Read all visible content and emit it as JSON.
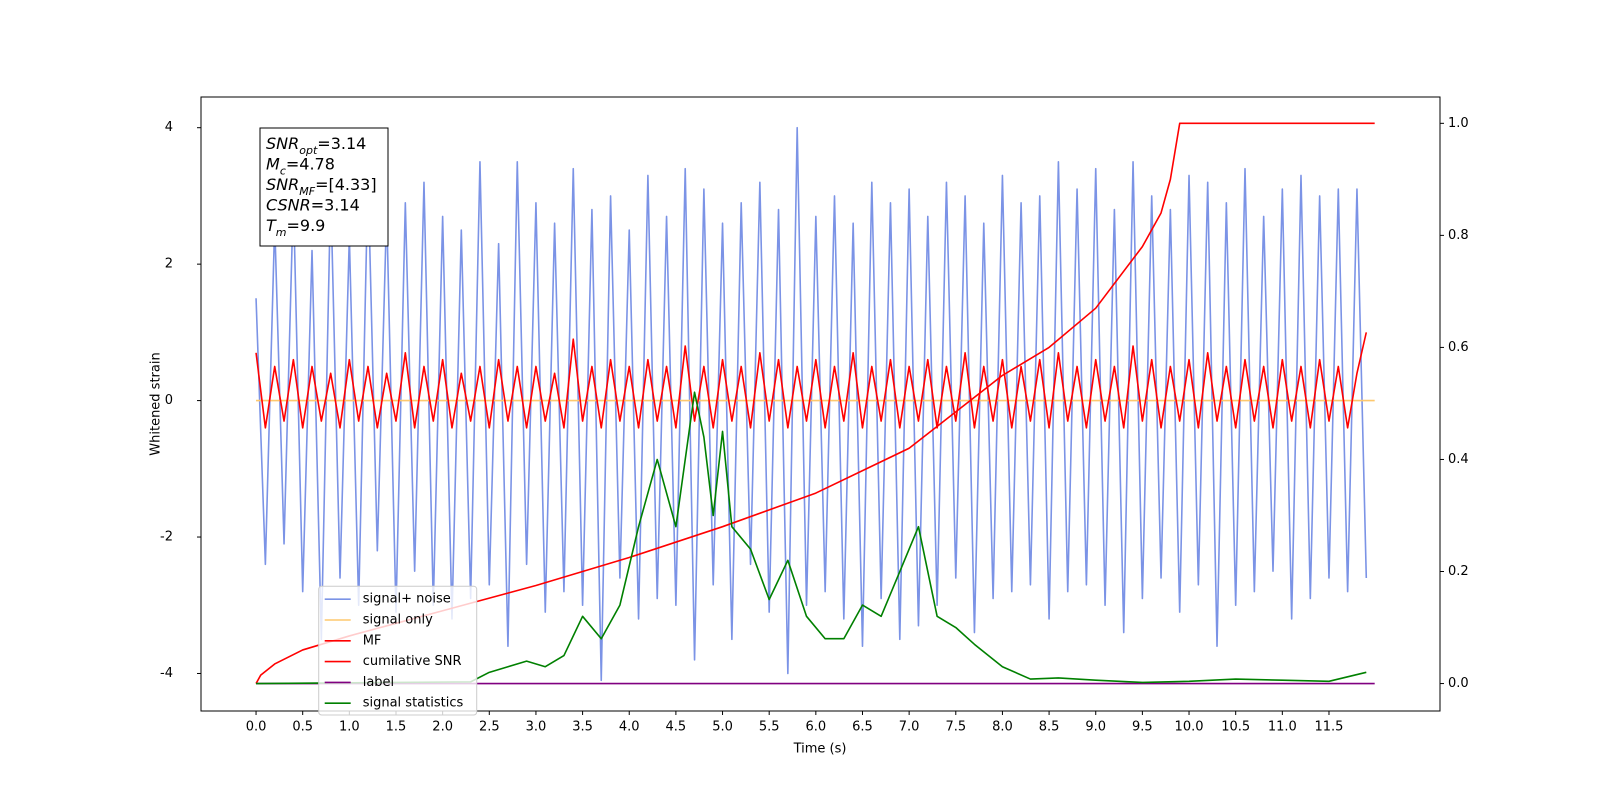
{
  "chart_data": {
    "type": "line",
    "xlabel": "Time (s)",
    "ylabel": "Whitened strain",
    "xlim": [
      -0.59,
      12.69
    ],
    "ylim": [
      -4.55,
      4.45
    ],
    "y2lim": [
      -0.049,
      1.047
    ],
    "xticks": [
      {
        "value": 0,
        "label": "0.0"
      },
      0.5,
      {
        "value": 1,
        "label": "1.0"
      },
      1.5,
      {
        "value": 2,
        "label": "2.0"
      },
      2.5,
      {
        "value": 3,
        "label": "3.0"
      },
      3.5,
      {
        "value": 4,
        "label": "4.0"
      },
      4.5,
      {
        "value": 5,
        "label": "5.0"
      },
      5.5,
      {
        "value": 6,
        "label": "6.0"
      },
      6.5,
      {
        "value": 7,
        "label": "7.0"
      },
      7.5,
      {
        "value": 8,
        "label": "8.0"
      },
      8.5,
      {
        "value": 9,
        "label": "9.0"
      },
      9.5,
      {
        "value": 10,
        "label": "10.0"
      },
      10.5,
      {
        "value": 11,
        "label": "11.0"
      },
      11.5
    ],
    "yticks": [
      -4,
      -2,
      0,
      2,
      4
    ],
    "y2ticks": [
      {
        "value": 0,
        "label": "0.0"
      },
      0.2,
      0.4,
      0.6,
      0.8,
      {
        "value": 1,
        "label": "1.0"
      }
    ],
    "legend": "lower left",
    "annotation": [
      {
        "main": "SNR",
        "sub": "opt",
        "rest": "=3.14"
      },
      {
        "main": "M",
        "sub": "c",
        "rest": "=4.78"
      },
      {
        "main": "SNR",
        "sub": "MF",
        "rest": "=[4.33]"
      },
      {
        "main": "CSNR",
        "sub": "",
        "rest": "=3.14"
      },
      {
        "main": "T",
        "sub": "m",
        "rest": "=9.9"
      }
    ],
    "x": [
      0.0,
      0.1,
      0.2,
      0.3,
      0.4,
      0.5,
      0.6,
      0.7,
      0.8,
      0.9,
      1.0,
      1.1,
      1.2,
      1.3,
      1.4,
      1.5,
      1.6,
      1.7,
      1.8,
      1.9,
      2.0,
      2.1,
      2.2,
      2.3,
      2.4,
      2.5,
      2.6,
      2.7,
      2.8,
      2.9,
      3.0,
      3.1,
      3.2,
      3.3,
      3.4,
      3.5,
      3.6,
      3.7,
      3.8,
      3.9,
      4.0,
      4.1,
      4.2,
      4.3,
      4.4,
      4.5,
      4.6,
      4.7,
      4.8,
      4.9,
      5.0,
      5.1,
      5.2,
      5.3,
      5.4,
      5.5,
      5.6,
      5.7,
      5.8,
      5.9,
      6.0,
      6.1,
      6.2,
      6.3,
      6.4,
      6.5,
      6.6,
      6.7,
      6.8,
      6.9,
      7.0,
      7.1,
      7.2,
      7.3,
      7.4,
      7.5,
      7.6,
      7.7,
      7.8,
      7.9,
      8.0,
      8.1,
      8.2,
      8.3,
      8.4,
      8.5,
      8.6,
      8.7,
      8.8,
      8.9,
      9.0,
      9.1,
      9.2,
      9.3,
      9.4,
      9.5,
      9.6,
      9.7,
      9.8,
      9.9,
      10.0,
      10.1,
      10.2,
      10.3,
      10.4,
      10.5,
      10.6,
      10.7,
      10.8,
      10.9,
      11.0,
      11.1,
      11.2,
      11.3,
      11.4,
      11.5,
      11.6,
      11.7,
      11.8,
      11.9
    ],
    "series": [
      {
        "name": "signal+ noise",
        "color": "#7b93e6",
        "values": [
          1.5,
          -2.4,
          2.6,
          -2.1,
          3.0,
          -2.8,
          2.2,
          -3.5,
          3.1,
          -2.6,
          2.4,
          -3.0,
          3.3,
          -2.2,
          2.8,
          -3.1,
          2.9,
          -2.5,
          3.2,
          -3.0,
          2.7,
          -3.2,
          2.5,
          -2.9,
          3.5,
          -2.7,
          2.3,
          -3.6,
          3.5,
          -2.4,
          2.9,
          -3.1,
          2.6,
          -2.8,
          3.4,
          -3.0,
          2.8,
          -4.1,
          3.0,
          -2.6,
          2.5,
          -3.2,
          3.3,
          -2.9,
          2.7,
          -3.0,
          3.4,
          -3.8,
          3.1,
          -2.7,
          2.6,
          -3.5,
          2.9,
          -2.4,
          3.2,
          -3.1,
          2.8,
          -4.0,
          4.0,
          -3.0,
          2.7,
          -2.8,
          3.0,
          -3.2,
          2.6,
          -3.6,
          3.2,
          -2.9,
          2.9,
          -3.5,
          3.1,
          -3.3,
          2.7,
          -3.0,
          3.2,
          -2.6,
          3.0,
          -3.4,
          2.6,
          -2.9,
          3.3,
          -2.8,
          2.9,
          -2.7,
          3.0,
          -3.2,
          3.5,
          -2.8,
          3.1,
          -2.7,
          3.4,
          -3.0,
          2.8,
          -3.4,
          3.5,
          -2.9,
          3.0,
          -2.6,
          2.8,
          -3.1,
          3.3,
          -2.7,
          3.2,
          -3.6,
          2.9,
          -3.0,
          3.4,
          -2.8,
          2.7,
          -2.5,
          3.1,
          -3.2,
          3.3,
          -2.9,
          3.0,
          -2.6,
          3.1,
          -2.8,
          3.1,
          -2.6
        ]
      },
      {
        "name": "signal only",
        "color": "#fdc86e",
        "x": [
          0,
          11.99
        ],
        "values": [
          0,
          0
        ]
      },
      {
        "name": "MF",
        "color": "#ff0000",
        "values": [
          0.7,
          -0.4,
          0.5,
          -0.3,
          0.6,
          -0.4,
          0.5,
          -0.3,
          0.4,
          -0.4,
          0.6,
          -0.3,
          0.5,
          -0.4,
          0.4,
          -0.3,
          0.7,
          -0.4,
          0.5,
          -0.3,
          0.6,
          -0.4,
          0.4,
          -0.3,
          0.5,
          -0.4,
          0.6,
          -0.3,
          0.5,
          -0.4,
          0.5,
          -0.3,
          0.4,
          -0.4,
          0.9,
          -0.3,
          0.5,
          -0.4,
          0.6,
          -0.3,
          0.5,
          -0.4,
          0.6,
          -0.3,
          0.5,
          -0.4,
          0.8,
          -0.3,
          0.5,
          -0.4,
          0.6,
          -0.3,
          0.5,
          -0.4,
          0.7,
          -0.3,
          0.6,
          -0.4,
          0.5,
          -0.3,
          0.6,
          -0.4,
          0.5,
          -0.3,
          0.7,
          -0.4,
          0.5,
          -0.3,
          0.6,
          -0.4,
          0.5,
          -0.3,
          0.6,
          -0.4,
          0.5,
          -0.3,
          0.7,
          -0.4,
          0.5,
          -0.3,
          0.6,
          -0.4,
          0.5,
          -0.3,
          0.6,
          -0.4,
          0.7,
          -0.3,
          0.5,
          -0.4,
          0.6,
          -0.3,
          0.5,
          -0.4,
          0.8,
          -0.3,
          0.6,
          -0.4,
          0.5,
          -0.3,
          0.6,
          -0.4,
          0.7,
          -0.3,
          0.5,
          -0.4,
          0.6,
          -0.3,
          0.5,
          -0.4,
          0.6,
          -0.3,
          0.5,
          -0.4,
          0.6,
          -0.3,
          0.5,
          -0.4,
          0.4,
          1.0
        ]
      },
      {
        "name": "cumilative SNR",
        "color": "#ff0000",
        "axis": "y2",
        "x": [
          0,
          0.05,
          0.2,
          0.5,
          1,
          2,
          3,
          4,
          5,
          6,
          7,
          8,
          8.5,
          9,
          9.5,
          9.7,
          9.8,
          9.9,
          11.99
        ],
        "values": [
          0,
          0.015,
          0.035,
          0.06,
          0.085,
          0.13,
          0.175,
          0.225,
          0.28,
          0.34,
          0.42,
          0.55,
          0.6,
          0.67,
          0.78,
          0.84,
          0.9,
          1.0,
          1.0
        ]
      },
      {
        "name": "label",
        "color": "#800080",
        "axis": "y2",
        "x": [
          0,
          11.99
        ],
        "values": [
          0,
          0
        ]
      },
      {
        "name": "signal statistics",
        "color": "#008000",
        "axis": "y2",
        "x": [
          0,
          2.3,
          2.5,
          2.7,
          2.9,
          3.1,
          3.3,
          3.5,
          3.7,
          3.9,
          4.1,
          4.3,
          4.5,
          4.7,
          4.8,
          4.9,
          5.0,
          5.1,
          5.3,
          5.5,
          5.7,
          5.9,
          6.1,
          6.3,
          6.5,
          6.7,
          6.9,
          7.1,
          7.3,
          7.5,
          7.7,
          8.0,
          8.3,
          8.6,
          9.0,
          9.5,
          10.0,
          10.5,
          11.0,
          11.5,
          11.9
        ],
        "values": [
          0,
          0.003,
          0.02,
          0.03,
          0.04,
          0.03,
          0.05,
          0.12,
          0.08,
          0.14,
          0.28,
          0.4,
          0.28,
          0.52,
          0.44,
          0.3,
          0.45,
          0.28,
          0.24,
          0.15,
          0.22,
          0.12,
          0.08,
          0.08,
          0.14,
          0.12,
          0.2,
          0.28,
          0.12,
          0.1,
          0.07,
          0.03,
          0.008,
          0.01,
          0.006,
          0.002,
          0.004,
          0.008,
          0.006,
          0.004,
          0.02
        ]
      }
    ]
  }
}
